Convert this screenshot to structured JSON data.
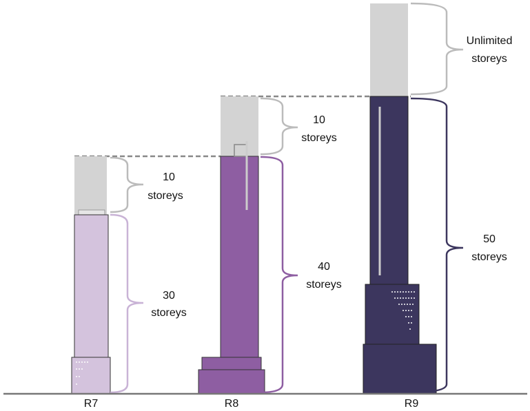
{
  "buildings": [
    {
      "label": "R7",
      "base": {
        "number": "30",
        "unit": "storeys"
      },
      "extension": {
        "number": "10",
        "unit": "storeys"
      }
    },
    {
      "label": "R8",
      "base": {
        "number": "40",
        "unit": "storeys"
      },
      "extension": {
        "number": "10",
        "unit": "storeys"
      }
    },
    {
      "label": "R9",
      "base": {
        "number": "50",
        "unit": "storeys"
      },
      "extension": {
        "number": "Unlimited",
        "unit": "storeys"
      }
    }
  ]
}
